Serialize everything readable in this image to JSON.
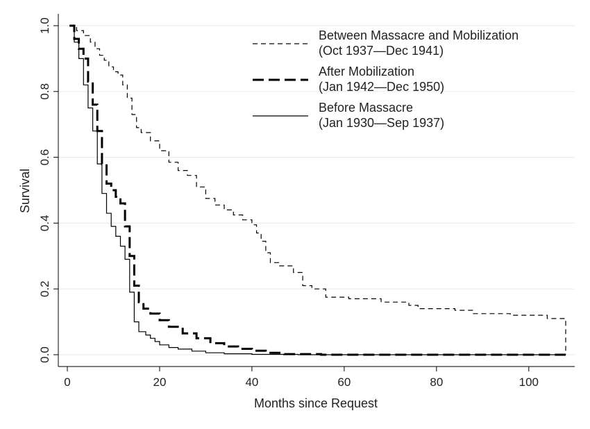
{
  "chart_data": {
    "type": "line",
    "title": "",
    "xlabel": "Months since Request",
    "ylabel": "Survival",
    "xlim": [
      0,
      108
    ],
    "ylim": [
      0,
      1
    ],
    "xticks": [
      0,
      20,
      40,
      60,
      80,
      100
    ],
    "yticks": [
      0.0,
      0.2,
      0.4,
      0.6,
      0.8,
      1.0
    ],
    "ytick_labels": [
      "0.0",
      "0.2",
      "0.4",
      "0.6",
      "0.8",
      "1.0"
    ],
    "grid": "horizontal",
    "legend_position": "top-right",
    "series": [
      {
        "name": "Between Massacre and Mobilization",
        "subtitle": "(Oct 1937—Dec 1941)",
        "style": "dashed-thin",
        "color": "#000000",
        "points": [
          [
            0.5,
            1.0
          ],
          [
            2,
            0.985
          ],
          [
            3.5,
            0.97
          ],
          [
            5,
            0.95
          ],
          [
            6,
            0.93
          ],
          [
            7,
            0.91
          ],
          [
            8,
            0.895
          ],
          [
            9,
            0.875
          ],
          [
            10,
            0.86
          ],
          [
            11,
            0.85
          ],
          [
            12,
            0.82
          ],
          [
            13,
            0.78
          ],
          [
            14,
            0.73
          ],
          [
            15,
            0.69
          ],
          [
            16,
            0.675
          ],
          [
            18,
            0.65
          ],
          [
            20,
            0.62
          ],
          [
            22,
            0.585
          ],
          [
            24,
            0.56
          ],
          [
            26,
            0.545
          ],
          [
            28,
            0.51
          ],
          [
            30,
            0.475
          ],
          [
            32,
            0.455
          ],
          [
            34,
            0.44
          ],
          [
            36,
            0.425
          ],
          [
            38,
            0.41
          ],
          [
            40,
            0.395
          ],
          [
            41,
            0.37
          ],
          [
            42,
            0.345
          ],
          [
            43,
            0.31
          ],
          [
            44,
            0.28
          ],
          [
            46,
            0.27
          ],
          [
            49,
            0.25
          ],
          [
            51,
            0.21
          ],
          [
            53,
            0.2
          ],
          [
            56,
            0.175
          ],
          [
            61,
            0.17
          ],
          [
            68,
            0.16
          ],
          [
            74,
            0.15
          ],
          [
            76,
            0.14
          ],
          [
            84,
            0.135
          ],
          [
            88,
            0.125
          ],
          [
            96,
            0.12
          ],
          [
            104,
            0.11
          ],
          [
            108,
            0.0
          ]
        ]
      },
      {
        "name": "After Mobilization",
        "subtitle": "(Jan 1942—Dec 1950)",
        "style": "dashed-thick",
        "color": "#000000",
        "points": [
          [
            0.5,
            1.0
          ],
          [
            1.5,
            0.96
          ],
          [
            2.5,
            0.93
          ],
          [
            3.5,
            0.9
          ],
          [
            4.5,
            0.83
          ],
          [
            5.5,
            0.76
          ],
          [
            6.5,
            0.68
          ],
          [
            7.5,
            0.58
          ],
          [
            8.5,
            0.52
          ],
          [
            9.5,
            0.5
          ],
          [
            10.5,
            0.48
          ],
          [
            11.5,
            0.46
          ],
          [
            12.5,
            0.39
          ],
          [
            13.5,
            0.3
          ],
          [
            14.5,
            0.21
          ],
          [
            15.5,
            0.16
          ],
          [
            16.5,
            0.14
          ],
          [
            18,
            0.125
          ],
          [
            20,
            0.105
          ],
          [
            22,
            0.085
          ],
          [
            25,
            0.065
          ],
          [
            28,
            0.05
          ],
          [
            31,
            0.035
          ],
          [
            34,
            0.025
          ],
          [
            37,
            0.018
          ],
          [
            40,
            0.012
          ],
          [
            43,
            0.006
          ],
          [
            47,
            0.002
          ],
          [
            55,
            0.0
          ],
          [
            108,
            0.0
          ]
        ]
      },
      {
        "name": "Before Massacre",
        "subtitle": "(Jan 1930—Sep 1937)",
        "style": "solid",
        "color": "#000000",
        "points": [
          [
            0.5,
            1.0
          ],
          [
            1.5,
            0.95
          ],
          [
            2.5,
            0.9
          ],
          [
            3.5,
            0.82
          ],
          [
            4.5,
            0.75
          ],
          [
            5.5,
            0.68
          ],
          [
            6.5,
            0.58
          ],
          [
            7.5,
            0.49
          ],
          [
            8.5,
            0.43
          ],
          [
            9.5,
            0.39
          ],
          [
            10.5,
            0.36
          ],
          [
            11.5,
            0.33
          ],
          [
            12.5,
            0.29
          ],
          [
            13.5,
            0.19
          ],
          [
            14.5,
            0.1
          ],
          [
            15.5,
            0.07
          ],
          [
            17,
            0.06
          ],
          [
            18,
            0.05
          ],
          [
            19,
            0.04
          ],
          [
            20,
            0.03
          ],
          [
            22,
            0.022
          ],
          [
            24,
            0.017
          ],
          [
            27,
            0.011
          ],
          [
            30,
            0.006
          ],
          [
            34,
            0.003
          ],
          [
            40,
            0.001
          ],
          [
            50,
            0.0
          ],
          [
            108,
            0.0
          ]
        ]
      }
    ]
  }
}
